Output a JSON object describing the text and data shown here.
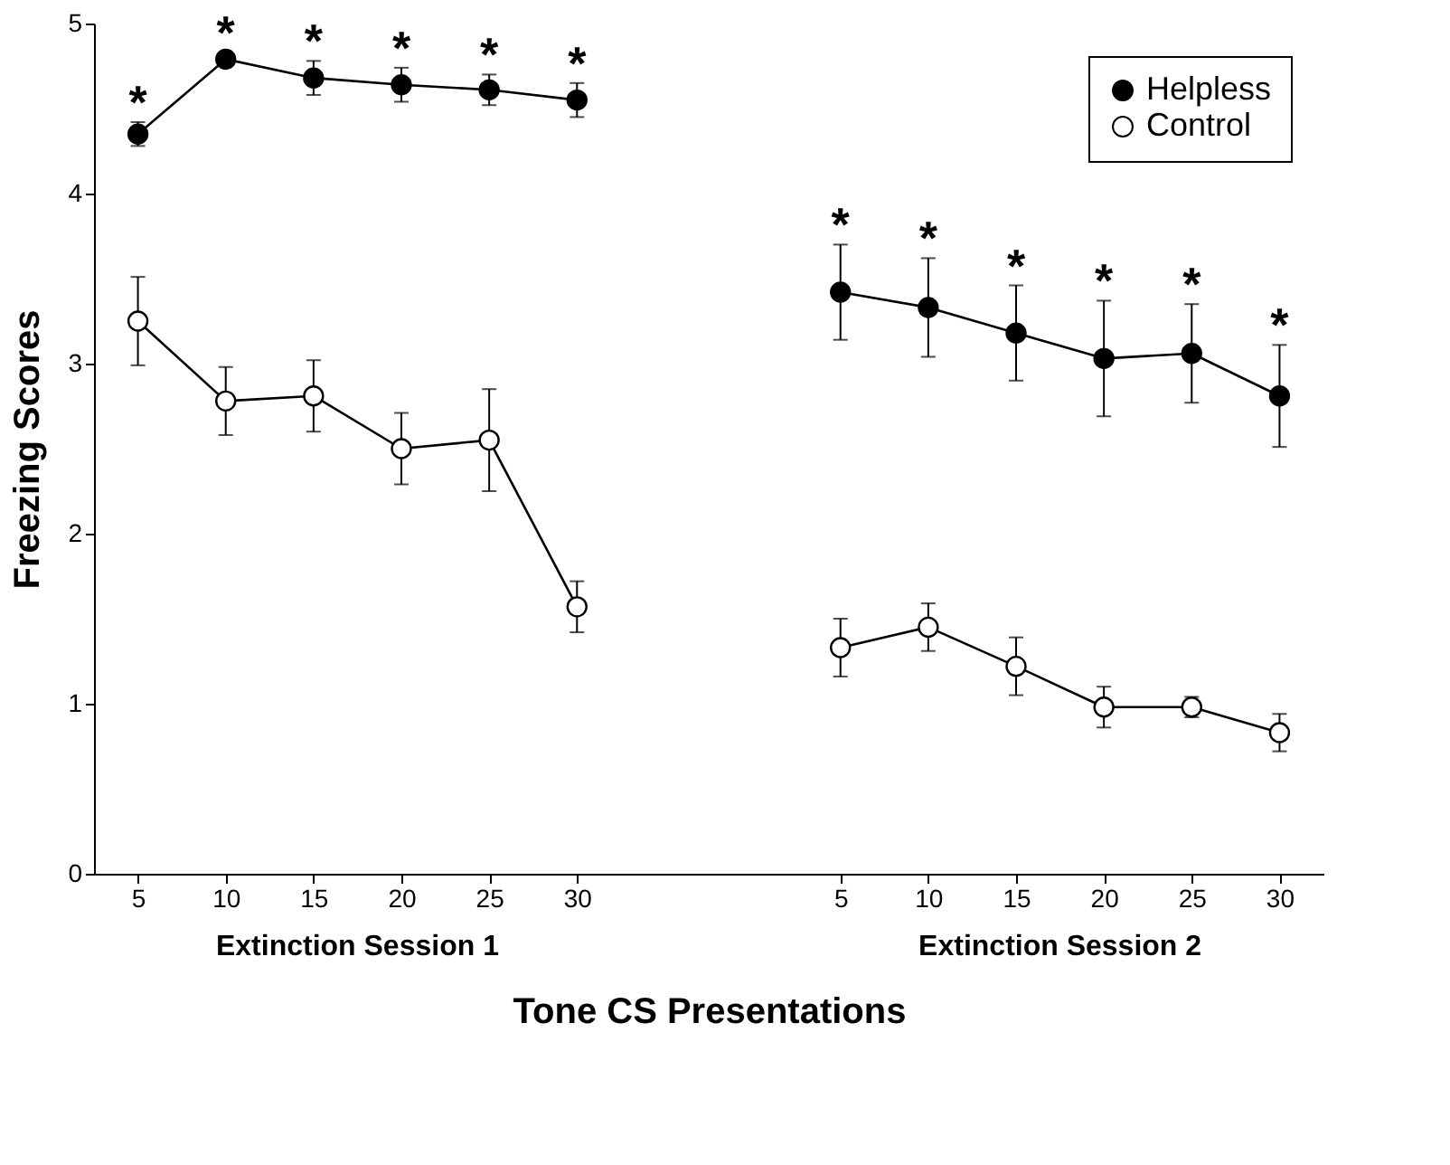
{
  "chart_data": {
    "type": "line",
    "xlabel": "Tone CS Presentations",
    "ylabel": "Freezing Scores",
    "categories": [
      "5",
      "10",
      "15",
      "20",
      "25",
      "30",
      null,
      null,
      "5",
      "10",
      "15",
      "20",
      "25",
      "30"
    ],
    "ylim": [
      0,
      5
    ],
    "yticks": [
      0,
      1,
      2,
      3,
      4,
      5
    ],
    "grid": false,
    "legend": "top right",
    "marker": "circle",
    "line_style": "solid",
    "series": [
      {
        "name": "Helpless",
        "color": "#000000",
        "values": [
          4.35,
          4.79,
          4.68,
          4.64,
          4.61,
          4.55,
          null,
          null,
          3.42,
          3.33,
          3.18,
          3.03,
          3.06,
          2.81
        ],
        "errors": [
          0.07,
          0.04,
          0.1,
          0.1,
          0.09,
          0.1,
          null,
          null,
          0.28,
          0.29,
          0.28,
          0.34,
          0.29,
          0.3
        ]
      },
      {
        "name": "Control",
        "color": "#ffffff",
        "values": [
          3.25,
          2.78,
          2.81,
          2.5,
          2.55,
          1.57,
          null,
          null,
          1.33,
          1.45,
          1.22,
          0.98,
          0.98,
          0.83
        ],
        "errors": [
          0.26,
          0.2,
          0.21,
          0.21,
          0.3,
          0.15,
          null,
          null,
          0.17,
          0.14,
          0.17,
          0.12,
          0.06,
          0.11
        ]
      }
    ],
    "annotations": [
      "Extinction Session 1",
      "Extinction Session 2",
      "*",
      "*",
      "*",
      "*",
      "*",
      "*",
      "*",
      "*",
      "*",
      "*",
      "*",
      "*"
    ]
  }
}
